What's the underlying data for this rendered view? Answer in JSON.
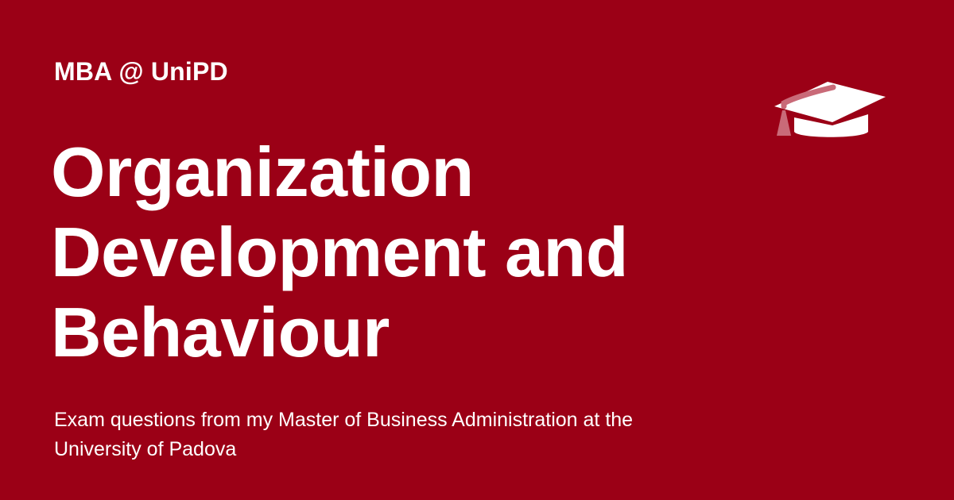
{
  "header": {
    "label": "MBA @ UniPD"
  },
  "title": {
    "lines": [
      "Organization",
      "Development and",
      "Behaviour"
    ]
  },
  "subtitle": {
    "lines": [
      "Exam questions from my Master of Business Administration at the",
      "University of Padova"
    ]
  },
  "icon": {
    "name": "graduation-cap-icon"
  },
  "colors": {
    "background": "#9b0016",
    "text": "#ffffff",
    "tassel": "#c96a78"
  }
}
